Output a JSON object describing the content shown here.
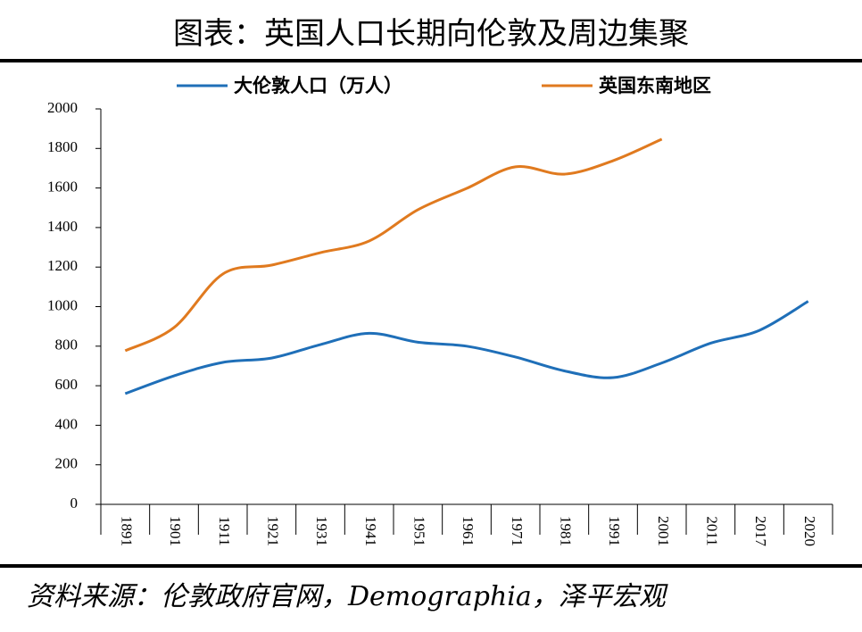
{
  "chart_data": {
    "type": "line",
    "title": "图表：英国人口长期向伦敦及周边集聚",
    "source": "资料来源：伦敦政府官网，Demographia，泽平宏观",
    "categories": [
      "1891",
      "1901",
      "1911",
      "1921",
      "1931",
      "1941",
      "1951",
      "1961",
      "1971",
      "1981",
      "1991",
      "2001",
      "2011",
      "2017",
      "2020"
    ],
    "series": [
      {
        "name": "大伦敦人口（万人）",
        "color": "#1f6fb8",
        "values": [
          560,
          650,
          718,
          740,
          808,
          865,
          820,
          800,
          745,
          675,
          641,
          715,
          815,
          880,
          1027
        ]
      },
      {
        "name": "英国东南地区",
        "color": "#e07a1f",
        "values": [
          777,
          894,
          1165,
          1210,
          1273,
          1332,
          1490,
          1598,
          1707,
          1670,
          1738,
          1847,
          null,
          null,
          null
        ]
      }
    ],
    "ylim": [
      0,
      2000
    ],
    "yticks": [
      0,
      200,
      400,
      600,
      800,
      1000,
      1200,
      1400,
      1600,
      1800,
      2000
    ],
    "legend": "top",
    "grid": false
  }
}
